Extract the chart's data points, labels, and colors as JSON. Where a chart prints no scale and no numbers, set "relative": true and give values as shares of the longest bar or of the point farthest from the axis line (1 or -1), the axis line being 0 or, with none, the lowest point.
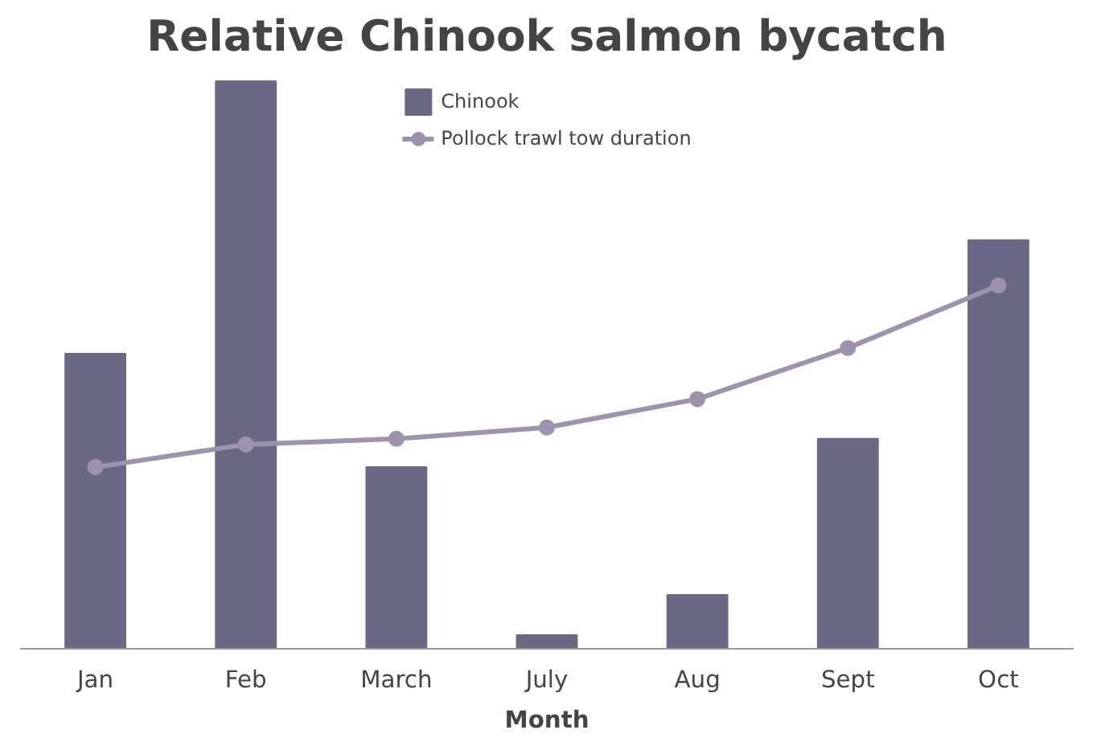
{
  "chart_data": {
    "type": "bar",
    "title": "Relative Chinook salmon bycatch",
    "xlabel": "Month",
    "relative": true,
    "grid": false,
    "legend": "top",
    "categories": [
      "Jan",
      "Feb",
      "March",
      "July",
      "Aug",
      "Sept",
      "Oct"
    ],
    "series": [
      {
        "name": "Chinook",
        "color": "#6b6886",
        "values": [
          0.52,
          1,
          0.32,
          0.024,
          0.095,
          0.37,
          0.72
        ]
      },
      {
        "name": "Pollock trawl tow duration",
        "type": "line",
        "color": "#9d93ae",
        "marker": "circle",
        "values": [
          0.32,
          0.36,
          0.37,
          0.39,
          0.44,
          0.53,
          0.64
        ]
      }
    ]
  }
}
